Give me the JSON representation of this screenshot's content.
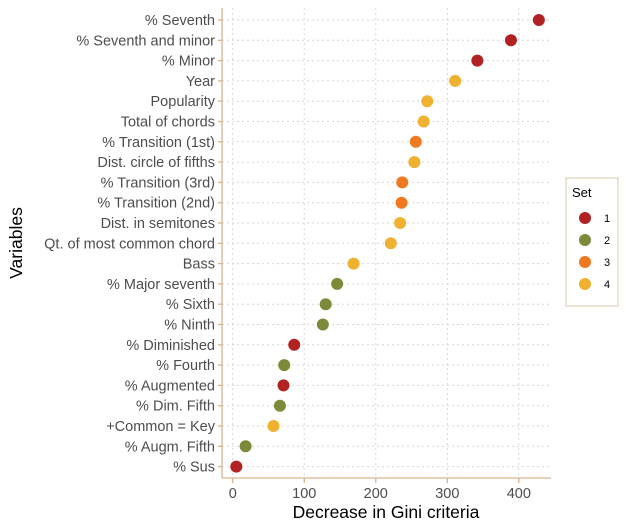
{
  "chart_data": {
    "type": "scatter",
    "title": "",
    "xlabel": "Decrease in Gini criteria",
    "ylabel": "Variables",
    "xlim": [
      -15,
      445
    ],
    "xticks": [
      0,
      100,
      200,
      300,
      400
    ],
    "grid": true,
    "legend": {
      "title": "Set",
      "position": "right",
      "entries": [
        {
          "label": "1",
          "color": "#b22222"
        },
        {
          "label": "2",
          "color": "#7d8a3a"
        },
        {
          "label": "3",
          "color": "#f07820"
        },
        {
          "label": "4",
          "color": "#f0b030"
        }
      ]
    },
    "points": [
      {
        "variable": "% Seventh",
        "value": 428,
        "set": "1"
      },
      {
        "variable": "% Seventh and minor",
        "value": 389,
        "set": "1"
      },
      {
        "variable": "% Minor",
        "value": 342,
        "set": "1"
      },
      {
        "variable": "Year",
        "value": 311,
        "set": "4"
      },
      {
        "variable": "Popularity",
        "value": 272,
        "set": "4"
      },
      {
        "variable": "Total of chords",
        "value": 267,
        "set": "4"
      },
      {
        "variable": "% Transition (1st)",
        "value": 256,
        "set": "3"
      },
      {
        "variable": "Dist. circle of fifths",
        "value": 254,
        "set": "4"
      },
      {
        "variable": "% Transition (3rd)",
        "value": 237,
        "set": "3"
      },
      {
        "variable": "% Transition (2nd)",
        "value": 236,
        "set": "3"
      },
      {
        "variable": "Dist. in semitones",
        "value": 234,
        "set": "4"
      },
      {
        "variable": "Qt. of most common chord",
        "value": 221,
        "set": "4"
      },
      {
        "variable": "Bass",
        "value": 169,
        "set": "4"
      },
      {
        "variable": "% Major seventh",
        "value": 146,
        "set": "2"
      },
      {
        "variable": "% Sixth",
        "value": 130,
        "set": "2"
      },
      {
        "variable": "% Ninth",
        "value": 126,
        "set": "2"
      },
      {
        "variable": "% Diminished",
        "value": 86,
        "set": "1"
      },
      {
        "variable": "% Fourth",
        "value": 72,
        "set": "2"
      },
      {
        "variable": "% Augmented",
        "value": 71,
        "set": "1"
      },
      {
        "variable": "% Dim. Fifth",
        "value": 66,
        "set": "2"
      },
      {
        "variable": "+Common = Key",
        "value": 57,
        "set": "4"
      },
      {
        "variable": "% Augm. Fifth",
        "value": 18,
        "set": "2"
      },
      {
        "variable": "% Sus",
        "value": 5,
        "set": "1"
      }
    ]
  }
}
